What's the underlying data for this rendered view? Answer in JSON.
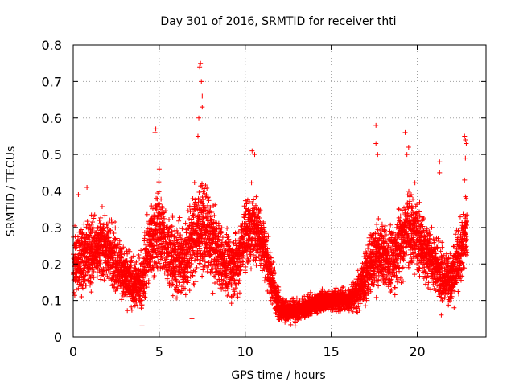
{
  "chart_data": {
    "type": "scatter",
    "title": "Day 301 of 2016, SRMTID for receiver thti",
    "xlabel": "GPS time / hours",
    "ylabel": "SRMTID / TECUs",
    "xlim": [
      0,
      24
    ],
    "ylim": [
      0,
      0.8
    ],
    "xticks": [
      0,
      5,
      10,
      15,
      20
    ],
    "xtick_labels": [
      "0",
      "5",
      "10",
      "15",
      "20"
    ],
    "yticks": [
      0,
      0.1,
      0.2,
      0.3,
      0.4,
      0.5,
      0.6,
      0.7,
      0.8
    ],
    "ytick_labels": [
      "0",
      "0.1",
      "0.2",
      "0.3",
      "0.4",
      "0.5",
      "0.6",
      "0.7",
      "0.8"
    ],
    "grid": true,
    "marker": "+",
    "color": "#ff0000",
    "sampling_interval_hours": 0.01,
    "series_envelope": {
      "name": "SRMTID",
      "x": [
        0,
        0.5,
        1,
        1.5,
        2,
        2.5,
        3,
        3.5,
        4,
        4.5,
        5,
        5.5,
        6,
        6.5,
        7,
        7.5,
        8,
        8.5,
        9,
        9.5,
        10,
        10.5,
        11,
        11.5,
        12,
        12.5,
        13,
        13.5,
        14,
        14.5,
        15,
        15.5,
        16,
        16.5,
        17,
        17.5,
        18,
        18.5,
        19,
        19.5,
        20,
        20.5,
        21,
        21.5,
        22,
        22.5,
        22.9
      ],
      "typical": [
        0.2,
        0.21,
        0.23,
        0.25,
        0.24,
        0.21,
        0.17,
        0.14,
        0.15,
        0.26,
        0.3,
        0.24,
        0.2,
        0.21,
        0.28,
        0.31,
        0.27,
        0.22,
        0.19,
        0.2,
        0.28,
        0.3,
        0.27,
        0.16,
        0.08,
        0.07,
        0.07,
        0.08,
        0.09,
        0.1,
        0.1,
        0.1,
        0.1,
        0.12,
        0.17,
        0.22,
        0.23,
        0.2,
        0.26,
        0.3,
        0.28,
        0.24,
        0.2,
        0.17,
        0.16,
        0.22,
        0.3
      ],
      "spread": [
        0.12,
        0.14,
        0.13,
        0.12,
        0.12,
        0.12,
        0.1,
        0.09,
        0.11,
        0.15,
        0.16,
        0.14,
        0.13,
        0.14,
        0.18,
        0.17,
        0.15,
        0.13,
        0.12,
        0.12,
        0.14,
        0.13,
        0.12,
        0.1,
        0.05,
        0.04,
        0.04,
        0.04,
        0.04,
        0.04,
        0.04,
        0.04,
        0.04,
        0.07,
        0.1,
        0.12,
        0.12,
        0.12,
        0.14,
        0.15,
        0.14,
        0.13,
        0.11,
        0.1,
        0.1,
        0.12,
        0.14
      ]
    },
    "notable_points": [
      {
        "x": 0.3,
        "y": 0.39
      },
      {
        "x": 0.8,
        "y": 0.41
      },
      {
        "x": 4.0,
        "y": 0.03
      },
      {
        "x": 4.75,
        "y": 0.56
      },
      {
        "x": 4.8,
        "y": 0.57
      },
      {
        "x": 5.0,
        "y": 0.46
      },
      {
        "x": 7.35,
        "y": 0.74
      },
      {
        "x": 7.4,
        "y": 0.75
      },
      {
        "x": 7.45,
        "y": 0.7
      },
      {
        "x": 7.5,
        "y": 0.66
      },
      {
        "x": 7.5,
        "y": 0.63
      },
      {
        "x": 7.25,
        "y": 0.55
      },
      {
        "x": 7.3,
        "y": 0.6
      },
      {
        "x": 6.9,
        "y": 0.05
      },
      {
        "x": 10.4,
        "y": 0.51
      },
      {
        "x": 10.55,
        "y": 0.5
      },
      {
        "x": 12.9,
        "y": 0.03
      },
      {
        "x": 17.6,
        "y": 0.58
      },
      {
        "x": 17.6,
        "y": 0.53
      },
      {
        "x": 17.7,
        "y": 0.5
      },
      {
        "x": 19.3,
        "y": 0.56
      },
      {
        "x": 19.5,
        "y": 0.52
      },
      {
        "x": 19.4,
        "y": 0.5
      },
      {
        "x": 21.3,
        "y": 0.48
      },
      {
        "x": 21.3,
        "y": 0.45
      },
      {
        "x": 21.4,
        "y": 0.06
      },
      {
        "x": 22.75,
        "y": 0.55
      },
      {
        "x": 22.8,
        "y": 0.54
      },
      {
        "x": 22.85,
        "y": 0.53
      },
      {
        "x": 22.8,
        "y": 0.49
      },
      {
        "x": 22.75,
        "y": 0.43
      }
    ]
  }
}
